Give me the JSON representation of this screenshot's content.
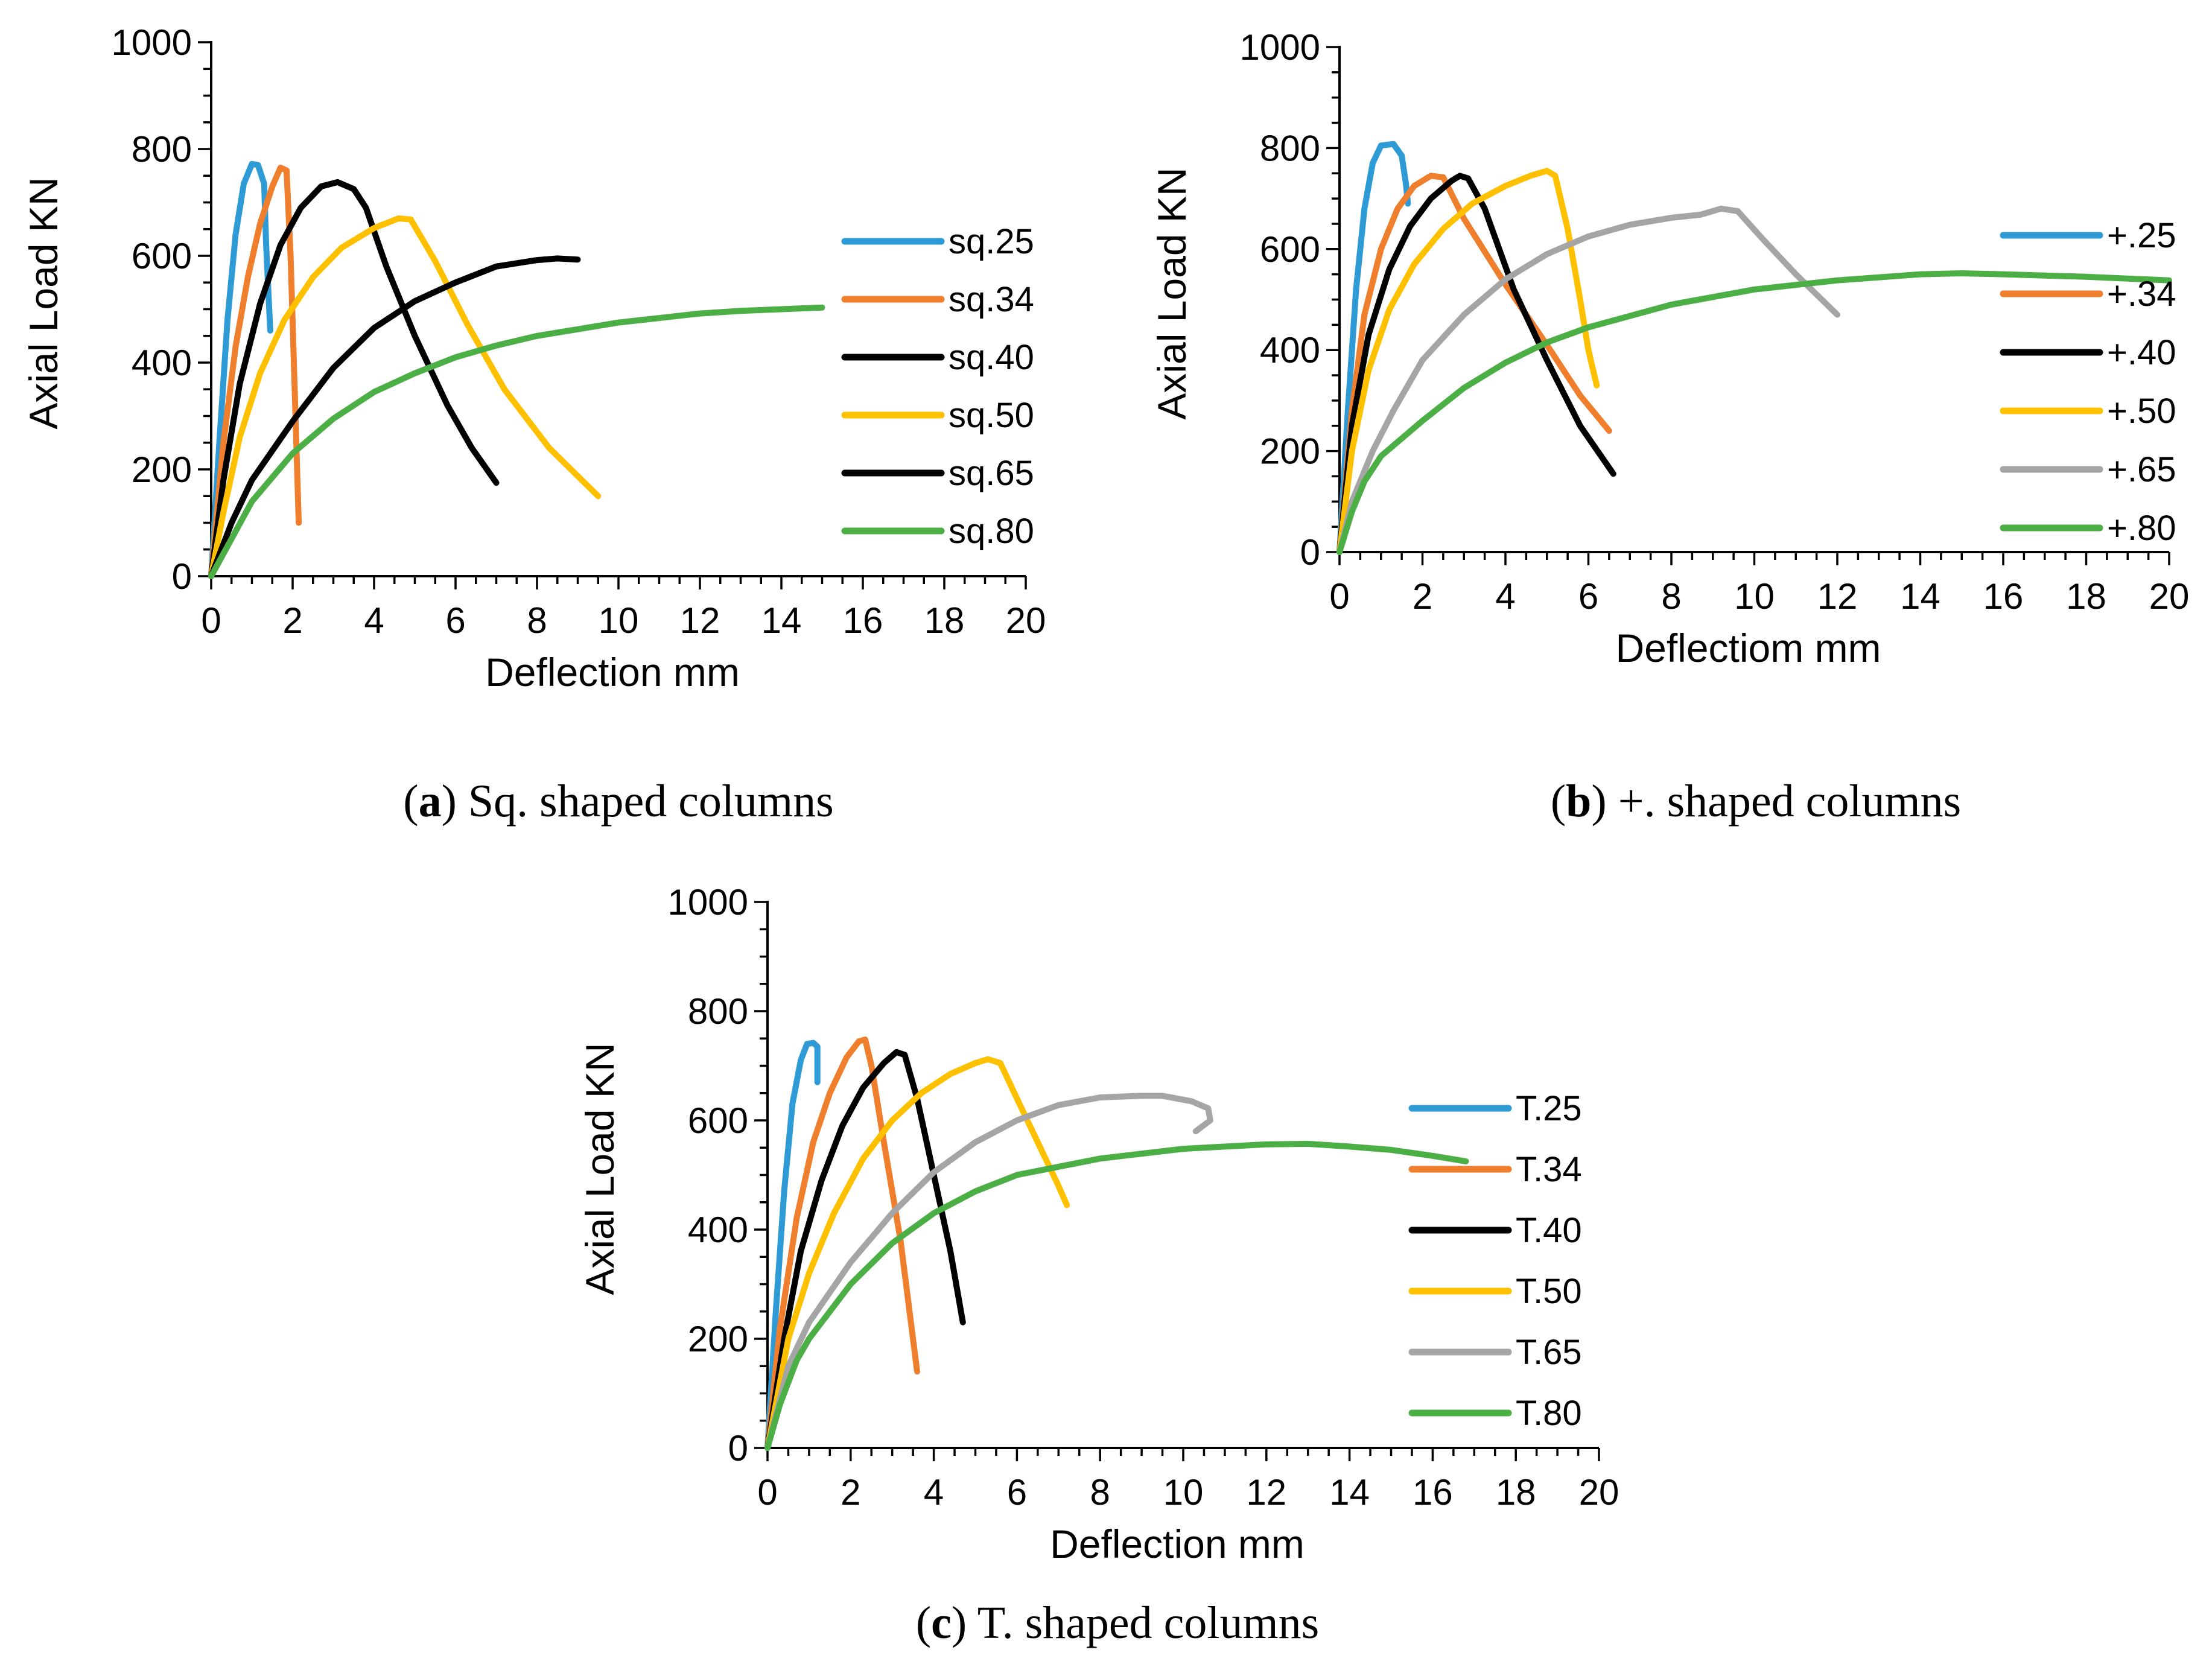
{
  "chart_data": [
    {
      "type": "line",
      "caption_letter": "a",
      "caption_text": " Sq. shaped columns",
      "xlabel": "Deflection mm",
      "ylabel": "Axial Load KN",
      "xlim": [
        0,
        20
      ],
      "ylim": [
        0,
        1000
      ],
      "xticks": [
        0,
        2,
        4,
        6,
        8,
        10,
        12,
        14,
        16,
        18,
        20
      ],
      "yticks": [
        0,
        200,
        400,
        600,
        800,
        1000
      ],
      "grid": false,
      "legend_position": "right",
      "series": [
        {
          "name": "sq.25",
          "color": "#2E9BD6",
          "points": [
            [
              0,
              0
            ],
            [
              0.2,
              250
            ],
            [
              0.4,
              480
            ],
            [
              0.6,
              640
            ],
            [
              0.8,
              735
            ],
            [
              1.0,
              772
            ],
            [
              1.15,
              770
            ],
            [
              1.3,
              735
            ],
            [
              1.35,
              620
            ],
            [
              1.45,
              460
            ]
          ]
        },
        {
          "name": "sq.34",
          "color": "#F07F2D",
          "points": [
            [
              0,
              0
            ],
            [
              0.3,
              250
            ],
            [
              0.6,
              430
            ],
            [
              0.9,
              560
            ],
            [
              1.2,
              660
            ],
            [
              1.5,
              730
            ],
            [
              1.7,
              765
            ],
            [
              1.85,
              760
            ],
            [
              1.95,
              600
            ],
            [
              2.05,
              350
            ],
            [
              2.15,
              100
            ]
          ]
        },
        {
          "name": "sq.40",
          "color": "#000000",
          "points": [
            [
              0,
              0
            ],
            [
              0.3,
              180
            ],
            [
              0.7,
              360
            ],
            [
              1.2,
              510
            ],
            [
              1.7,
              620
            ],
            [
              2.2,
              690
            ],
            [
              2.7,
              730
            ],
            [
              3.1,
              738
            ],
            [
              3.5,
              725
            ],
            [
              3.8,
              690
            ],
            [
              4.3,
              580
            ],
            [
              5.0,
              450
            ],
            [
              5.8,
              320
            ],
            [
              6.4,
              240
            ],
            [
              7.0,
              175
            ]
          ]
        },
        {
          "name": "sq.50",
          "color": "#FFC000",
          "points": [
            [
              0,
              0
            ],
            [
              0.3,
              120
            ],
            [
              0.7,
              260
            ],
            [
              1.2,
              380
            ],
            [
              1.8,
              480
            ],
            [
              2.5,
              560
            ],
            [
              3.2,
              615
            ],
            [
              4.0,
              652
            ],
            [
              4.6,
              670
            ],
            [
              4.9,
              668
            ],
            [
              5.5,
              590
            ],
            [
              6.3,
              470
            ],
            [
              7.2,
              350
            ],
            [
              8.3,
              240
            ],
            [
              9.5,
              150
            ]
          ]
        },
        {
          "name": "sq.65",
          "color": "#000000",
          "points": [
            [
              0,
              0
            ],
            [
              0.5,
              100
            ],
            [
              1,
              180
            ],
            [
              2,
              290
            ],
            [
              3,
              390
            ],
            [
              4,
              465
            ],
            [
              5,
              515
            ],
            [
              6,
              550
            ],
            [
              7,
              580
            ],
            [
              8,
              592
            ],
            [
              8.5,
              595
            ],
            [
              9.0,
              593
            ]
          ]
        },
        {
          "name": "sq.80",
          "color": "#4CAF46",
          "points": [
            [
              0,
              0
            ],
            [
              0.5,
              70
            ],
            [
              1,
              140
            ],
            [
              2,
              230
            ],
            [
              3,
              295
            ],
            [
              4,
              345
            ],
            [
              5,
              380
            ],
            [
              6,
              410
            ],
            [
              7,
              432
            ],
            [
              8,
              450
            ],
            [
              10,
              475
            ],
            [
              12,
              492
            ],
            [
              13,
              497
            ],
            [
              14,
              500
            ],
            [
              15,
              503
            ]
          ]
        }
      ]
    },
    {
      "type": "line",
      "caption_letter": "b",
      "caption_text": " +. shaped columns",
      "xlabel": "Deflectiom mm",
      "ylabel": "Axial Load KN",
      "xlim": [
        0,
        20
      ],
      "ylim": [
        0,
        1000
      ],
      "xticks": [
        0,
        2,
        4,
        6,
        8,
        10,
        12,
        14,
        16,
        18,
        20
      ],
      "yticks": [
        0,
        200,
        400,
        600,
        800,
        1000
      ],
      "grid": false,
      "legend_position": "right",
      "series": [
        {
          "name": "+.25",
          "color": "#2E9BD6",
          "points": [
            [
              0,
              0
            ],
            [
              0.2,
              280
            ],
            [
              0.4,
              520
            ],
            [
              0.6,
              680
            ],
            [
              0.8,
              770
            ],
            [
              1.0,
              805
            ],
            [
              1.3,
              808
            ],
            [
              1.5,
              785
            ],
            [
              1.6,
              730
            ],
            [
              1.65,
              690
            ]
          ]
        },
        {
          "name": "+.34",
          "color": "#F07F2D",
          "points": [
            [
              0,
              0
            ],
            [
              0.3,
              280
            ],
            [
              0.6,
              470
            ],
            [
              1.0,
              600
            ],
            [
              1.4,
              680
            ],
            [
              1.8,
              725
            ],
            [
              2.2,
              745
            ],
            [
              2.5,
              742
            ],
            [
              3.0,
              660
            ],
            [
              4.0,
              530
            ],
            [
              5.0,
              410
            ],
            [
              5.8,
              310
            ],
            [
              6.5,
              240
            ]
          ]
        },
        {
          "name": "+.40",
          "color": "#000000",
          "points": [
            [
              0,
              0
            ],
            [
              0.3,
              250
            ],
            [
              0.7,
              430
            ],
            [
              1.2,
              560
            ],
            [
              1.7,
              645
            ],
            [
              2.2,
              700
            ],
            [
              2.7,
              735
            ],
            [
              2.9,
              745
            ],
            [
              3.1,
              740
            ],
            [
              3.5,
              680
            ],
            [
              4.2,
              520
            ],
            [
              5.0,
              380
            ],
            [
              5.8,
              250
            ],
            [
              6.6,
              155
            ]
          ]
        },
        {
          "name": "+.50",
          "color": "#FFC000",
          "points": [
            [
              0,
              0
            ],
            [
              0.3,
              200
            ],
            [
              0.7,
              360
            ],
            [
              1.2,
              480
            ],
            [
              1.8,
              570
            ],
            [
              2.5,
              640
            ],
            [
              3.2,
              690
            ],
            [
              4.0,
              725
            ],
            [
              4.6,
              745
            ],
            [
              5.0,
              755
            ],
            [
              5.2,
              745
            ],
            [
              5.5,
              640
            ],
            [
              5.8,
              500
            ],
            [
              6.0,
              400
            ],
            [
              6.2,
              330
            ]
          ]
        },
        {
          "name": "+.65",
          "color": "#A5A5A5",
          "points": [
            [
              0,
              0
            ],
            [
              0.3,
              100
            ],
            [
              0.8,
              200
            ],
            [
              1.3,
              280
            ],
            [
              2,
              380
            ],
            [
              3,
              470
            ],
            [
              4,
              540
            ],
            [
              5,
              590
            ],
            [
              6,
              625
            ],
            [
              7,
              648
            ],
            [
              8,
              662
            ],
            [
              8.7,
              668
            ],
            [
              9.2,
              680
            ],
            [
              9.6,
              675
            ],
            [
              10.2,
              620
            ],
            [
              11,
              550
            ],
            [
              11.5,
              510
            ],
            [
              12.0,
              470
            ]
          ]
        },
        {
          "name": "+.80",
          "color": "#4CAF46",
          "points": [
            [
              0,
              0
            ],
            [
              0.3,
              80
            ],
            [
              0.6,
              140
            ],
            [
              1,
              190
            ],
            [
              2,
              260
            ],
            [
              3,
              325
            ],
            [
              4,
              375
            ],
            [
              5,
              415
            ],
            [
              6,
              445
            ],
            [
              8,
              490
            ],
            [
              10,
              520
            ],
            [
              12,
              538
            ],
            [
              14,
              550
            ],
            [
              15,
              552
            ],
            [
              16,
              550
            ],
            [
              18,
              545
            ],
            [
              20,
              538
            ]
          ]
        }
      ]
    },
    {
      "type": "line",
      "caption_letter": "c",
      "caption_text": " T. shaped columns",
      "xlabel": "Deflection mm",
      "ylabel": "Axial Load KN",
      "xlim": [
        0,
        20
      ],
      "ylim": [
        0,
        1000
      ],
      "xticks": [
        0,
        2,
        4,
        6,
        8,
        10,
        12,
        14,
        16,
        18,
        20
      ],
      "yticks": [
        0,
        200,
        400,
        600,
        800,
        1000
      ],
      "grid": false,
      "legend_position": "right",
      "series": [
        {
          "name": "T.25",
          "color": "#2E9BD6",
          "points": [
            [
              0,
              0
            ],
            [
              0.2,
              250
            ],
            [
              0.4,
              470
            ],
            [
              0.6,
              630
            ],
            [
              0.8,
              710
            ],
            [
              0.95,
              740
            ],
            [
              1.1,
              742
            ],
            [
              1.2,
              735
            ],
            [
              1.2,
              670
            ]
          ]
        },
        {
          "name": "T.34",
          "color": "#F07F2D",
          "points": [
            [
              0,
              0
            ],
            [
              0.3,
              220
            ],
            [
              0.7,
              420
            ],
            [
              1.1,
              560
            ],
            [
              1.5,
              650
            ],
            [
              1.9,
              715
            ],
            [
              2.2,
              745
            ],
            [
              2.35,
              748
            ],
            [
              2.5,
              700
            ],
            [
              2.8,
              560
            ],
            [
              3.2,
              380
            ],
            [
              3.6,
              140
            ]
          ]
        },
        {
          "name": "T.40",
          "color": "#000000",
          "points": [
            [
              0,
              0
            ],
            [
              0.4,
              200
            ],
            [
              0.8,
              360
            ],
            [
              1.3,
              490
            ],
            [
              1.8,
              590
            ],
            [
              2.3,
              660
            ],
            [
              2.8,
              705
            ],
            [
              3.1,
              725
            ],
            [
              3.3,
              720
            ],
            [
              3.6,
              640
            ],
            [
              4.0,
              500
            ],
            [
              4.4,
              360
            ],
            [
              4.7,
              230
            ]
          ]
        },
        {
          "name": "T.50",
          "color": "#FFC000",
          "points": [
            [
              0,
              0
            ],
            [
              0.5,
              200
            ],
            [
              1,
              320
            ],
            [
              1.6,
              430
            ],
            [
              2.3,
              530
            ],
            [
              3,
              600
            ],
            [
              3.7,
              650
            ],
            [
              4.4,
              685
            ],
            [
              5.0,
              705
            ],
            [
              5.3,
              712
            ],
            [
              5.6,
              705
            ],
            [
              6.0,
              640
            ],
            [
              6.5,
              560
            ],
            [
              7.0,
              480
            ],
            [
              7.2,
              445
            ]
          ]
        },
        {
          "name": "T.65",
          "color": "#A5A5A5",
          "points": [
            [
              0,
              0
            ],
            [
              0.5,
              150
            ],
            [
              1,
              230
            ],
            [
              2,
              340
            ],
            [
              3,
              430
            ],
            [
              4,
              505
            ],
            [
              5,
              560
            ],
            [
              6,
              600
            ],
            [
              7,
              628
            ],
            [
              8,
              642
            ],
            [
              9,
              645
            ],
            [
              9.5,
              645
            ],
            [
              10.2,
              635
            ],
            [
              10.6,
              622
            ],
            [
              10.65,
              600
            ],
            [
              10.3,
              580
            ]
          ]
        },
        {
          "name": "T.80",
          "color": "#4CAF46",
          "points": [
            [
              0,
              0
            ],
            [
              0.3,
              80
            ],
            [
              0.7,
              160
            ],
            [
              1,
              200
            ],
            [
              2,
              300
            ],
            [
              3,
              375
            ],
            [
              4,
              430
            ],
            [
              5,
              470
            ],
            [
              6,
              500
            ],
            [
              8,
              530
            ],
            [
              10,
              548
            ],
            [
              12,
              556
            ],
            [
              13,
              557
            ],
            [
              14,
              552
            ],
            [
              15,
              546
            ],
            [
              16,
              535
            ],
            [
              16.8,
              525
            ]
          ]
        }
      ]
    }
  ]
}
